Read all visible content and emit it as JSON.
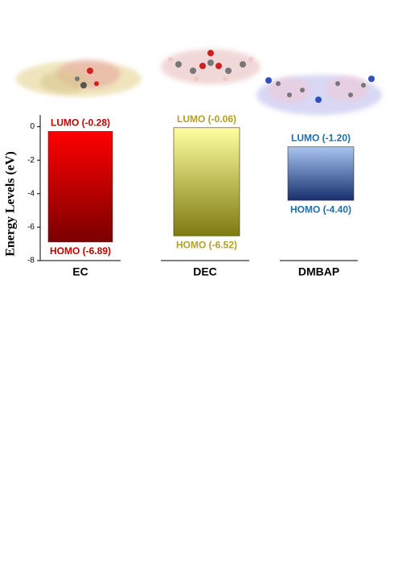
{
  "chart_data": {
    "type": "floating_bar",
    "y_label": "Energy Levels (eV)",
    "categories": [
      "EC",
      "DEC",
      "DMBAP"
    ],
    "series": [
      {
        "values": [
          -0.28,
          -0.06,
          -1.2
        ],
        "value_labels": [
          "LUMO (-0.28)",
          "LUMO (-0.06)",
          "LUMO (-1.20)"
        ]
      },
      {
        "values": [
          -6.89,
          -6.52,
          -4.4
        ],
        "value_labels": [
          "HOMO (-6.89)",
          "HOMO (-6.52)",
          "HOMO (-4.40)"
        ]
      }
    ],
    "bar_colors": [
      [
        "#ff0000",
        "#7a0000"
      ],
      [
        "#ffffa0",
        "#7d7a10"
      ],
      [
        "#a8c4f0",
        "#17306e"
      ]
    ],
    "label_colors": [
      "#c00000",
      "#b3a124",
      "#1f6fa8"
    ],
    "ylim": [
      -8,
      0.7
    ],
    "yticks": [
      0,
      -2,
      -4,
      -6,
      -8
    ]
  }
}
